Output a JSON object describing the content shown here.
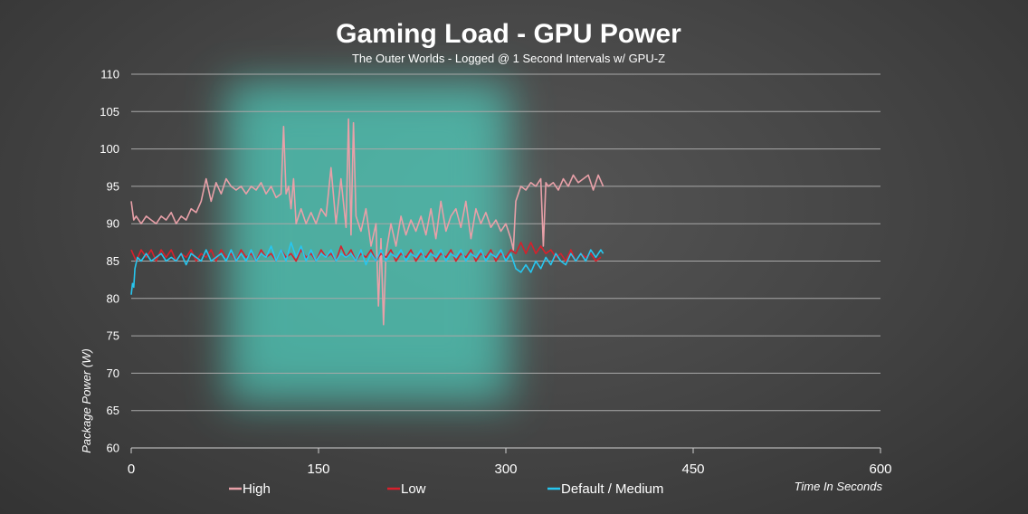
{
  "chart_data": {
    "type": "line",
    "title": "Gaming Load - GPU Power",
    "subtitle": "The Outer Worlds - Logged @ 1 Second Intervals w/ GPU-Z",
    "xlabel": "Time In Seconds",
    "ylabel": "Package Power (W)",
    "xlim": [
      0,
      600
    ],
    "ylim": [
      60,
      110
    ],
    "x_ticks": [
      0,
      150,
      300,
      450,
      600
    ],
    "y_ticks": [
      60,
      65,
      70,
      75,
      80,
      85,
      90,
      95,
      100,
      105,
      110
    ],
    "grid": "horizontal",
    "legend_position": "bottom",
    "highlight_region": {
      "x_start": 75,
      "x_end": 305,
      "color": "#4fd6c4"
    },
    "series": [
      {
        "name": "High",
        "color": "#e8a0a8",
        "x": [
          0,
          2,
          4,
          8,
          12,
          16,
          20,
          24,
          28,
          32,
          36,
          40,
          44,
          48,
          52,
          56,
          60,
          64,
          68,
          72,
          76,
          80,
          84,
          88,
          92,
          96,
          100,
          104,
          108,
          112,
          116,
          120,
          122,
          124,
          126,
          128,
          130,
          132,
          134,
          136,
          140,
          144,
          148,
          152,
          156,
          160,
          164,
          168,
          172,
          174,
          176,
          178,
          180,
          184,
          188,
          192,
          196,
          198,
          200,
          202,
          204,
          208,
          212,
          216,
          220,
          224,
          228,
          232,
          236,
          240,
          244,
          248,
          252,
          256,
          260,
          264,
          268,
          272,
          276,
          280,
          284,
          288,
          292,
          296,
          300,
          304,
          306,
          308,
          312,
          316,
          320,
          324,
          328,
          330,
          332,
          334,
          338,
          342,
          346,
          350,
          354,
          358,
          362,
          366,
          370,
          374,
          378
        ],
        "values": [
          93,
          90.5,
          91,
          90,
          91,
          90.5,
          90,
          91,
          90.5,
          91.5,
          90,
          91,
          90.5,
          92,
          91.5,
          93,
          96,
          93,
          95.5,
          94,
          96,
          95,
          94.5,
          95,
          94,
          95,
          94.5,
          95.5,
          94,
          95,
          93.5,
          94,
          103,
          94,
          95,
          92,
          96,
          90,
          91,
          92,
          90,
          91.5,
          90,
          92,
          91,
          97.5,
          90,
          96,
          89.5,
          104,
          88.5,
          103.5,
          91,
          89,
          92,
          87,
          90,
          79,
          88,
          76.5,
          86,
          90,
          87,
          91,
          88.5,
          90.5,
          89,
          91,
          88.5,
          92,
          88,
          93,
          89,
          91,
          92,
          89.5,
          93,
          88,
          92,
          90,
          91.5,
          89.5,
          90.5,
          89,
          90,
          88,
          86.5,
          93,
          95,
          94.5,
          95.5,
          95,
          96,
          87,
          95.5,
          95,
          95.5,
          94.5,
          96,
          95,
          96.5,
          95.5,
          96,
          96.5,
          94.5,
          96.5,
          95
        ]
      },
      {
        "name": "Low",
        "color": "#d8202c",
        "x": [
          0,
          4,
          8,
          12,
          16,
          20,
          24,
          28,
          32,
          36,
          40,
          44,
          48,
          52,
          56,
          60,
          64,
          68,
          72,
          76,
          80,
          84,
          88,
          92,
          96,
          100,
          104,
          108,
          112,
          116,
          120,
          124,
          128,
          132,
          136,
          140,
          144,
          148,
          152,
          156,
          160,
          164,
          168,
          172,
          176,
          180,
          184,
          188,
          192,
          196,
          200,
          204,
          208,
          212,
          216,
          220,
          224,
          228,
          232,
          236,
          240,
          244,
          248,
          252,
          256,
          260,
          264,
          268,
          272,
          276,
          280,
          284,
          288,
          292,
          296,
          300,
          304,
          308,
          312,
          316,
          320,
          324,
          328,
          332,
          336,
          340,
          344,
          348,
          352,
          356,
          360,
          364,
          368,
          372,
          376
        ],
        "values": [
          86.5,
          85,
          86.5,
          85.5,
          86.5,
          85,
          86.5,
          85.5,
          86.5,
          85,
          86,
          85.5,
          86.5,
          85,
          86,
          85.5,
          86.5,
          85,
          86.5,
          85.5,
          86,
          85,
          86.5,
          85.5,
          86,
          85,
          86.5,
          85.5,
          86,
          85,
          86.5,
          85.5,
          86,
          85,
          86.5,
          85.5,
          86,
          85,
          86.5,
          85.5,
          86,
          85,
          87,
          85.5,
          86.5,
          85,
          86,
          85.5,
          86.5,
          85,
          86,
          85.5,
          86.5,
          85,
          86,
          85.5,
          86.5,
          85,
          86,
          85.5,
          86.5,
          85,
          86,
          85.5,
          86.5,
          85,
          86,
          85.5,
          86.5,
          85,
          86,
          85.5,
          86.5,
          85,
          86,
          85.5,
          86.5,
          86,
          87.5,
          86,
          87.5,
          86,
          87,
          86,
          86.5,
          85.5,
          86,
          85,
          86.5,
          85,
          86,
          85.5,
          86,
          85,
          85.5
        ]
      },
      {
        "name": "Default / Medium",
        "color": "#27c6ef",
        "x": [
          0,
          1,
          2,
          3,
          5,
          8,
          12,
          16,
          20,
          24,
          28,
          32,
          36,
          40,
          44,
          48,
          52,
          56,
          60,
          64,
          68,
          72,
          76,
          80,
          84,
          88,
          92,
          96,
          100,
          104,
          108,
          112,
          116,
          120,
          124,
          128,
          132,
          136,
          140,
          144,
          148,
          152,
          156,
          160,
          164,
          168,
          172,
          176,
          180,
          184,
          188,
          192,
          196,
          200,
          204,
          208,
          212,
          216,
          220,
          224,
          228,
          232,
          236,
          240,
          244,
          248,
          252,
          256,
          260,
          264,
          268,
          272,
          276,
          280,
          284,
          288,
          292,
          296,
          300,
          304,
          308,
          312,
          316,
          320,
          324,
          328,
          332,
          336,
          340,
          344,
          348,
          352,
          356,
          360,
          364,
          368,
          372,
          376,
          378
        ],
        "values": [
          80.5,
          82,
          81.5,
          84,
          85.5,
          85,
          86,
          85,
          85.5,
          86,
          85,
          85.5,
          85,
          86,
          84.5,
          86,
          85.5,
          85,
          86.5,
          85,
          85.5,
          86,
          85,
          86.5,
          85,
          86,
          85,
          86.5,
          85,
          86,
          85.5,
          87,
          85,
          86.5,
          85,
          87.5,
          85.5,
          87,
          85,
          86.5,
          85,
          86,
          85.5,
          86.5,
          85,
          86,
          85.5,
          86,
          85,
          86.5,
          84.5,
          86,
          85,
          86.5,
          85,
          86,
          85.5,
          86.5,
          85,
          86,
          85.5,
          86.5,
          85,
          86,
          85.5,
          86.5,
          85,
          86,
          85.5,
          86.5,
          85,
          86,
          85.5,
          86.5,
          85,
          86,
          85.5,
          86.5,
          85,
          86,
          84,
          83.5,
          84.5,
          83.5,
          85,
          84,
          85.5,
          84.5,
          86,
          85,
          84.5,
          86,
          85,
          86,
          85,
          86.5,
          85.5,
          86.5,
          86
        ]
      }
    ]
  }
}
